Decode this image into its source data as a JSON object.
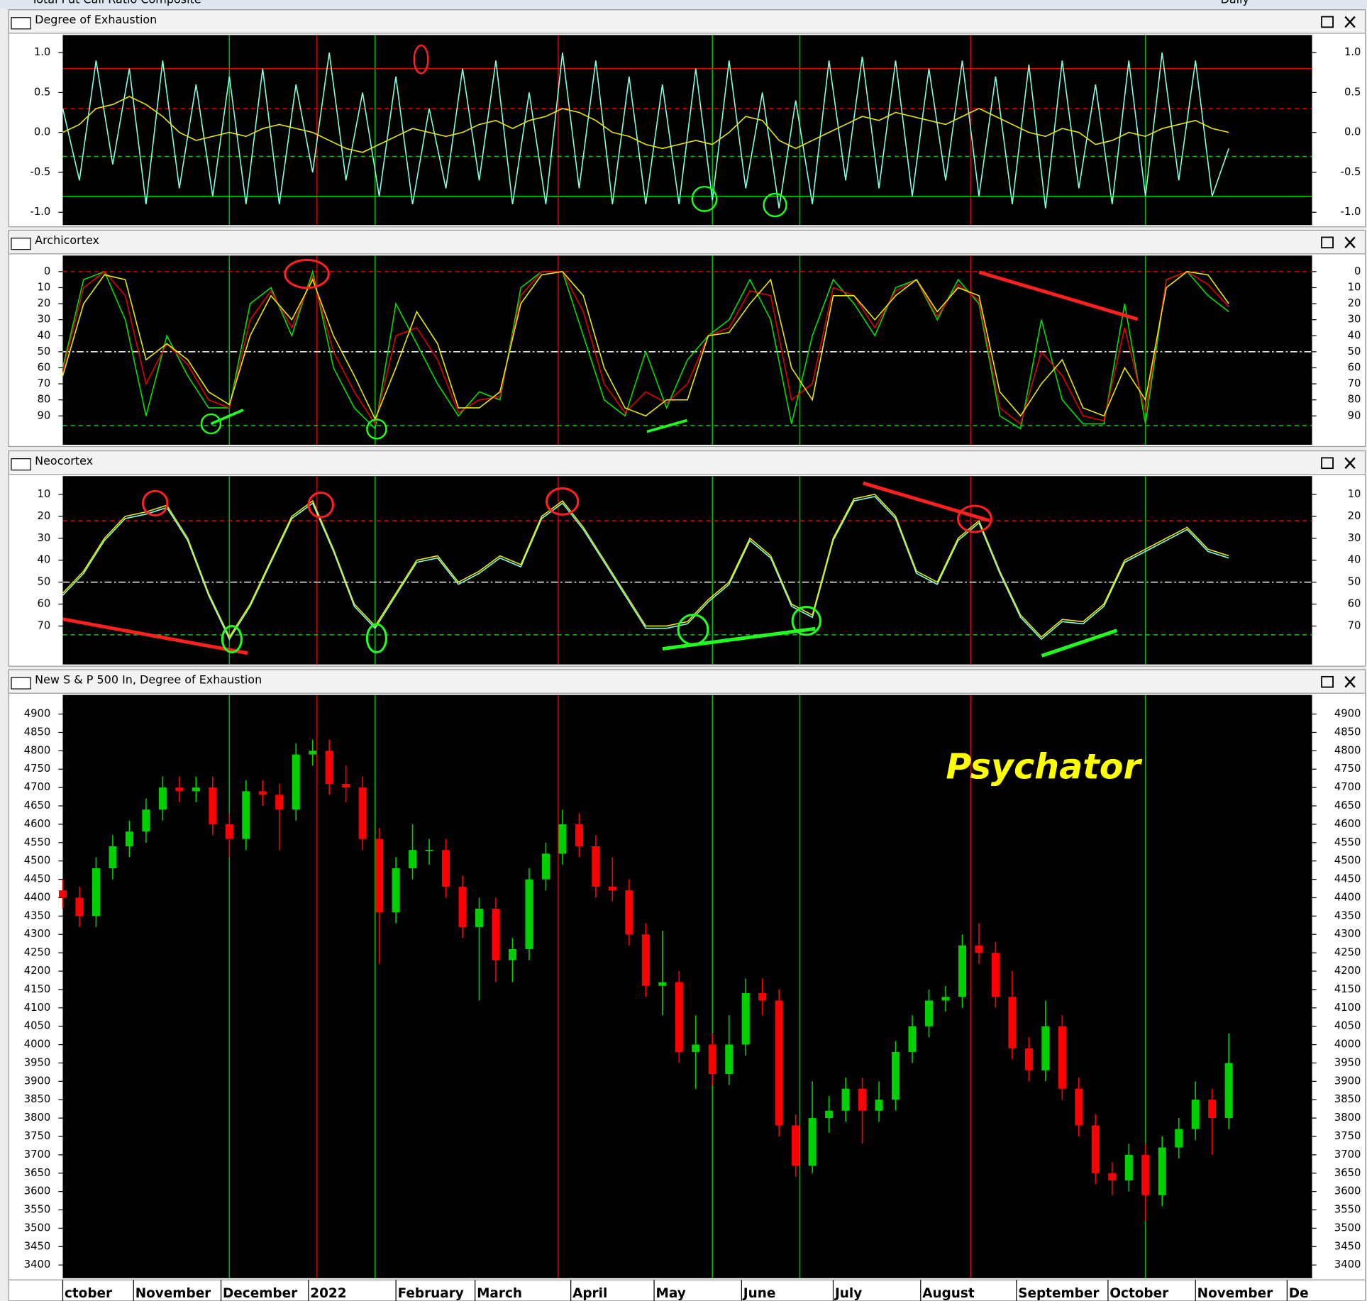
{
  "window": {
    "title": "Total Put Call Ratio Composite",
    "period": "Daily"
  },
  "watermark": "Psychator",
  "event_lines": [
    {
      "x": 40,
      "color": "#00b400"
    },
    {
      "x": 75,
      "color": "#00b400"
    },
    {
      "x": 156,
      "color": "#00b400"
    },
    {
      "x": 177,
      "color": "#00b400"
    },
    {
      "x": 260,
      "color": "#00b400"
    },
    {
      "x": 61,
      "color": "#c80000"
    },
    {
      "x": 119,
      "color": "#c80000"
    },
    {
      "x": 218,
      "color": "#c80000"
    }
  ],
  "chart_data": [
    {
      "type": "line",
      "title": "Degree of Exhaustion",
      "xlim": [
        0,
        300
      ],
      "ylim": [
        -1.16,
        1.22
      ],
      "y_inverted": false,
      "yticks": [
        {
          "value": -1,
          "label": "-1.0"
        },
        -0.5,
        {
          "value": 0,
          "label": "0.0"
        },
        0.5,
        {
          "value": 1,
          "label": "1.0"
        }
      ],
      "ref_lines": [
        {
          "y": 0.8,
          "color": "#e00000",
          "style": "solid"
        },
        {
          "y": 0.3,
          "color": "#e00000",
          "style": "dashed"
        },
        {
          "y": -0.3,
          "color": "#00d000",
          "style": "dashed"
        },
        {
          "y": -0.8,
          "color": "#00d000",
          "style": "solid"
        }
      ],
      "x": [
        0,
        4,
        8,
        12,
        16,
        20,
        24,
        28,
        32,
        36,
        40,
        44,
        48,
        52,
        56,
        60,
        64,
        68,
        72,
        76,
        80,
        84,
        88,
        92,
        96,
        100,
        104,
        108,
        112,
        116,
        120,
        124,
        128,
        132,
        136,
        140,
        144,
        148,
        152,
        156,
        160,
        164,
        168,
        172,
        176,
        180,
        184,
        188,
        192,
        196,
        200,
        204,
        208,
        212,
        216,
        220,
        224,
        228,
        232,
        236,
        240,
        244,
        248,
        252,
        256,
        260,
        264,
        268,
        272,
        276,
        280
      ],
      "series": [
        {
          "color": "#80ffe0",
          "values": [
            0.3,
            -0.6,
            0.9,
            -0.4,
            0.8,
            -0.9,
            0.9,
            -0.7,
            0.6,
            -0.8,
            0.7,
            -0.9,
            0.8,
            -0.9,
            0.6,
            -0.5,
            1.0,
            -0.6,
            0.5,
            -0.8,
            0.7,
            -0.9,
            0.3,
            -0.7,
            0.8,
            -0.6,
            0.9,
            -0.9,
            0.5,
            -0.9,
            1.0,
            -0.7,
            0.9,
            -0.9,
            0.7,
            -0.9,
            0.6,
            -0.9,
            0.8,
            -0.85,
            0.9,
            -0.7,
            0.5,
            -0.95,
            0.4,
            -0.9,
            0.9,
            -0.6,
            0.95,
            -0.7,
            0.9,
            -0.8,
            0.8,
            -0.6,
            0.9,
            -0.8,
            0.7,
            -0.9,
            0.85,
            -0.95,
            0.9,
            -0.7,
            0.6,
            -0.9,
            0.9,
            -0.8,
            1.0,
            -0.6,
            0.9,
            -0.8,
            -0.2
          ]
        },
        {
          "color": "#e8e800",
          "values": [
            0.0,
            0.1,
            0.3,
            0.35,
            0.45,
            0.35,
            0.2,
            0.0,
            -0.1,
            -0.05,
            0.0,
            -0.05,
            0.05,
            0.1,
            0.05,
            0.0,
            -0.1,
            -0.2,
            -0.25,
            -0.15,
            -0.05,
            0.05,
            0.0,
            -0.05,
            0.0,
            0.1,
            0.15,
            0.05,
            0.15,
            0.2,
            0.3,
            0.25,
            0.15,
            0.0,
            -0.05,
            -0.15,
            -0.2,
            -0.15,
            -0.1,
            -0.15,
            0.0,
            0.2,
            0.15,
            -0.1,
            -0.2,
            -0.1,
            0.0,
            0.1,
            0.2,
            0.15,
            0.25,
            0.2,
            0.15,
            0.1,
            0.2,
            0.3,
            0.2,
            0.1,
            0.0,
            -0.05,
            0.05,
            0.0,
            -0.15,
            -0.1,
            0.0,
            -0.05,
            0.05,
            0.1,
            0.15,
            0.05,
            0.0
          ]
        }
      ]
    },
    {
      "type": "line",
      "title": "Archicortex",
      "xlim": [
        0,
        300
      ],
      "ylim": [
        -10,
        108
      ],
      "y_inverted": true,
      "yticks": [
        0,
        10,
        20,
        30,
        40,
        50,
        60,
        70,
        80,
        90
      ],
      "ref_lines": [
        {
          "y": 0,
          "color": "#e00000",
          "style": "dashed"
        },
        {
          "y": 50,
          "color": "#ffffff",
          "style": "dashdot"
        },
        {
          "y": 96,
          "color": "#00d000",
          "style": "dashed"
        }
      ],
      "x": [
        0,
        5,
        10,
        15,
        20,
        25,
        30,
        35,
        40,
        45,
        50,
        55,
        60,
        65,
        70,
        75,
        80,
        85,
        90,
        95,
        100,
        105,
        110,
        115,
        120,
        125,
        130,
        135,
        140,
        145,
        150,
        155,
        160,
        165,
        170,
        175,
        180,
        185,
        190,
        195,
        200,
        205,
        210,
        215,
        220,
        225,
        230,
        235,
        240,
        245,
        250,
        255,
        260,
        265,
        270,
        275,
        280
      ],
      "series": [
        {
          "color": "#00e000",
          "values": [
            60,
            5,
            0,
            30,
            90,
            40,
            65,
            85,
            85,
            20,
            10,
            40,
            0,
            60,
            85,
            98,
            20,
            45,
            70,
            90,
            75,
            80,
            10,
            0,
            0,
            40,
            80,
            90,
            50,
            85,
            55,
            40,
            30,
            5,
            30,
            95,
            40,
            5,
            20,
            40,
            10,
            5,
            30,
            5,
            20,
            90,
            98,
            30,
            80,
            95,
            95,
            20,
            95,
            5,
            0,
            15,
            25
          ]
        },
        {
          "color": "#e00000",
          "values": [
            62,
            10,
            0,
            15,
            70,
            45,
            58,
            80,
            85,
            30,
            12,
            35,
            3,
            50,
            75,
            95,
            40,
            35,
            55,
            88,
            80,
            78,
            15,
            0,
            0,
            25,
            70,
            88,
            75,
            82,
            70,
            40,
            35,
            12,
            15,
            80,
            70,
            10,
            15,
            35,
            12,
            5,
            28,
            8,
            18,
            85,
            95,
            50,
            65,
            90,
            93,
            35,
            88,
            5,
            0,
            8,
            22
          ]
        },
        {
          "color": "#e8e800",
          "values": [
            65,
            20,
            2,
            5,
            55,
            45,
            55,
            75,
            83,
            40,
            15,
            30,
            5,
            40,
            65,
            92,
            60,
            25,
            45,
            85,
            85,
            75,
            20,
            2,
            0,
            15,
            60,
            85,
            90,
            80,
            80,
            40,
            38,
            20,
            5,
            60,
            80,
            15,
            15,
            30,
            15,
            5,
            25,
            10,
            15,
            75,
            90,
            70,
            55,
            85,
            90,
            60,
            80,
            10,
            0,
            2,
            20
          ]
        }
      ]
    },
    {
      "type": "line",
      "title": "Neocortex",
      "xlim": [
        0,
        300
      ],
      "ylim": [
        1.7,
        87.5
      ],
      "y_inverted": true,
      "yticks": [
        10,
        20,
        30,
        40,
        50,
        60,
        70
      ],
      "ref_lines": [
        {
          "y": 22,
          "color": "#e00000",
          "style": "dashed"
        },
        {
          "y": 50,
          "color": "#ffffff",
          "style": "dashdot"
        },
        {
          "y": 74,
          "color": "#00d000",
          "style": "dashed"
        }
      ],
      "x": [
        0,
        5,
        10,
        15,
        20,
        25,
        30,
        35,
        40,
        45,
        50,
        55,
        60,
        65,
        70,
        75,
        80,
        85,
        90,
        95,
        100,
        105,
        110,
        115,
        120,
        125,
        130,
        135,
        140,
        145,
        150,
        155,
        160,
        165,
        170,
        175,
        180,
        185,
        190,
        195,
        200,
        205,
        210,
        215,
        220,
        225,
        230,
        235,
        240,
        245,
        250,
        255,
        260,
        265,
        270,
        275,
        280
      ],
      "series": [
        {
          "color": "#80ffe0",
          "values": [
            56,
            46,
            31,
            21,
            19,
            16,
            31,
            56,
            76,
            61,
            41,
            21,
            14,
            36,
            61,
            71,
            56,
            41,
            39,
            51,
            46,
            39,
            43,
            21,
            14,
            26,
            41,
            56,
            71,
            71,
            69,
            59,
            51,
            31,
            39,
            61,
            66,
            31,
            13,
            11,
            21,
            46,
            51,
            31,
            23,
            46,
            66,
            76,
            68,
            69,
            61,
            41,
            36,
            31,
            26,
            36,
            39
          ]
        },
        {
          "color": "#e8e800",
          "values": [
            55,
            45,
            30,
            20,
            18,
            15,
            30,
            55,
            75,
            60,
            40,
            20,
            13,
            35,
            60,
            70,
            55,
            40,
            38,
            50,
            45,
            38,
            42,
            20,
            13,
            25,
            40,
            55,
            70,
            70,
            68,
            58,
            50,
            30,
            38,
            60,
            65,
            30,
            12,
            10,
            20,
            45,
            50,
            30,
            22,
            45,
            65,
            75,
            67,
            68,
            60,
            40,
            35,
            30,
            25,
            35,
            38
          ]
        }
      ]
    },
    {
      "type": "candlestick",
      "title": "New S & P 500 In, Degree of Exhaustion",
      "xlim": [
        0,
        300
      ],
      "ylim": [
        3364,
        4952
      ],
      "y_inverted": false,
      "yticks": [
        3400,
        3450,
        3500,
        3550,
        3600,
        3650,
        3700,
        3750,
        3800,
        3850,
        3900,
        3950,
        4000,
        4050,
        4100,
        4150,
        4200,
        4250,
        4300,
        4350,
        4400,
        4450,
        4500,
        4550,
        4600,
        4650,
        4700,
        4750,
        4800,
        4850,
        4900
      ],
      "xticks": [
        {
          "value": 0,
          "label": "ctober"
        },
        {
          "value": 17,
          "label": "November"
        },
        {
          "value": 38,
          "label": "December"
        },
        {
          "value": 59,
          "label": "2022"
        },
        {
          "value": 80,
          "label": "February"
        },
        {
          "value": 99,
          "label": "March"
        },
        {
          "value": 122,
          "label": "April"
        },
        {
          "value": 142,
          "label": "May"
        },
        {
          "value": 163,
          "label": "June"
        },
        {
          "value": 185,
          "label": "July"
        },
        {
          "value": 206,
          "label": "August"
        },
        {
          "value": 229,
          "label": "September"
        },
        {
          "value": 251,
          "label": "October"
        },
        {
          "value": 272,
          "label": "November"
        },
        {
          "value": 294,
          "label": "De"
        }
      ],
      "up_color": "#00d000",
      "down_color": "#ff0000",
      "x": [
        0,
        4,
        8,
        12,
        16,
        20,
        24,
        28,
        32,
        36,
        40,
        44,
        48,
        52,
        56,
        60,
        64,
        68,
        72,
        76,
        80,
        84,
        88,
        92,
        96,
        100,
        104,
        108,
        112,
        116,
        120,
        124,
        128,
        132,
        136,
        140,
        144,
        148,
        152,
        156,
        160,
        164,
        168,
        172,
        176,
        180,
        184,
        188,
        192,
        196,
        200,
        204,
        208,
        212,
        216,
        220,
        224,
        228,
        232,
        236,
        240,
        244,
        248,
        252,
        256,
        260,
        264,
        268,
        272,
        276,
        280
      ],
      "open": [
        4420,
        4400,
        4350,
        4480,
        4540,
        4580,
        4640,
        4700,
        4690,
        4700,
        4600,
        4560,
        4690,
        4680,
        4640,
        4790,
        4800,
        4710,
        4700,
        4560,
        4360,
        4480,
        4530,
        4530,
        4430,
        4320,
        4370,
        4230,
        4260,
        4450,
        4520,
        4600,
        4540,
        4430,
        4420,
        4300,
        4160,
        4170,
        3980,
        4000,
        3920,
        4000,
        4140,
        4120,
        3780,
        3670,
        3800,
        3820,
        3880,
        3820,
        3850,
        3980,
        4050,
        4120,
        4130,
        4270,
        4250,
        4130,
        3990,
        3930,
        4050,
        3880,
        3780,
        3650,
        3630,
        3700,
        3590,
        3720,
        3770,
        3850,
        3800
      ],
      "high": [
        4450,
        4430,
        4510,
        4570,
        4610,
        4670,
        4730,
        4730,
        4730,
        4730,
        4630,
        4720,
        4720,
        4710,
        4820,
        4830,
        4830,
        4760,
        4730,
        4590,
        4510,
        4600,
        4560,
        4560,
        4460,
        4400,
        4400,
        4290,
        4480,
        4550,
        4640,
        4630,
        4570,
        4510,
        4450,
        4330,
        4310,
        4200,
        4080,
        4030,
        4080,
        4180,
        4180,
        4150,
        3810,
        3900,
        3860,
        3910,
        3910,
        3900,
        4010,
        4080,
        4150,
        4160,
        4300,
        4330,
        4280,
        4200,
        4020,
        4120,
        4080,
        3910,
        3810,
        3680,
        3730,
        3730,
        3750,
        3800,
        3900,
        3880,
        4030
      ],
      "low": [
        4370,
        4320,
        4320,
        4450,
        4510,
        4550,
        4610,
        4660,
        4660,
        4570,
        4510,
        4530,
        4650,
        4530,
        4610,
        4760,
        4680,
        4660,
        4530,
        4220,
        4330,
        4450,
        4490,
        4400,
        4290,
        4120,
        4170,
        4170,
        4230,
        4420,
        4490,
        4510,
        4400,
        4390,
        4270,
        4130,
        4080,
        3950,
        3880,
        3890,
        3890,
        3970,
        4080,
        3750,
        3640,
        3650,
        3760,
        3790,
        3730,
        3790,
        3820,
        3950,
        4020,
        4090,
        4100,
        4220,
        4100,
        3960,
        3900,
        3900,
        3850,
        3750,
        3620,
        3590,
        3600,
        3520,
        3560,
        3690,
        3740,
        3700,
        3770
      ],
      "close": [
        4400,
        4350,
        4480,
        4540,
        4580,
        4640,
        4700,
        4690,
        4700,
        4600,
        4560,
        4690,
        4680,
        4640,
        4790,
        4800,
        4710,
        4700,
        4560,
        4360,
        4480,
        4530,
        4530,
        4430,
        4320,
        4370,
        4230,
        4260,
        4450,
        4520,
        4600,
        4540,
        4430,
        4420,
        4300,
        4160,
        4170,
        3980,
        4000,
        3920,
        4000,
        4140,
        4120,
        3780,
        3670,
        3800,
        3820,
        3880,
        3820,
        3850,
        3980,
        4050,
        4120,
        4130,
        4270,
        4250,
        4130,
        3990,
        3930,
        4050,
        3880,
        3780,
        3650,
        3630,
        3700,
        3590,
        3720,
        3770,
        3850,
        3800,
        3950
      ]
    }
  ]
}
